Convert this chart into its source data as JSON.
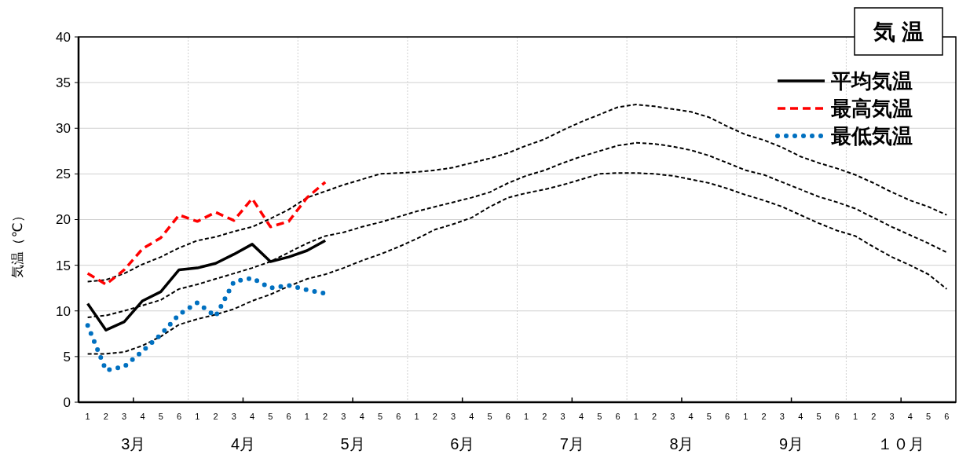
{
  "chart_data": {
    "type": "line",
    "title": "気 温",
    "ylabel": "気温（℃）",
    "categories": [
      "1",
      "2",
      "3",
      "4",
      "5",
      "6",
      "1",
      "2",
      "3",
      "4",
      "5",
      "6",
      "1",
      "2",
      "3",
      "4",
      "5",
      "6",
      "1",
      "2",
      "3",
      "4",
      "5",
      "6",
      "1",
      "2",
      "3",
      "4",
      "5",
      "6",
      "1",
      "2",
      "3",
      "4",
      "5",
      "6",
      "1",
      "2",
      "3",
      "4",
      "5",
      "6",
      "1",
      "2",
      "3",
      "4",
      "5",
      "6"
    ],
    "annotations": [
      "3月",
      "4月",
      "5月",
      "6月",
      "7月",
      "8月",
      "9月",
      "１０月"
    ],
    "ylim": [
      0,
      40
    ],
    "yticks": [
      0,
      5,
      10,
      15,
      20,
      25,
      30,
      35,
      40
    ],
    "grid": true,
    "legend": "top right",
    "series": [
      {
        "color": "#000000",
        "line_style": "dashed",
        "values": [
          13.2,
          13.4,
          14.1,
          15.1,
          15.9,
          16.9,
          17.7,
          18.1,
          18.7,
          19.2,
          20.1,
          21.1,
          22.4,
          23.1,
          23.8,
          24.4,
          25.0,
          25.1,
          25.2,
          25.4,
          25.7,
          26.2,
          26.7,
          27.3,
          28.1,
          28.8,
          29.8,
          30.7,
          31.5,
          32.3,
          32.6,
          32.4,
          32.1,
          31.8,
          31.2,
          30.2,
          29.3,
          28.7,
          27.9,
          26.9,
          26.2,
          25.6,
          24.9,
          24.0,
          23.0,
          22.1,
          21.4,
          20.5
        ]
      },
      {
        "color": "#000000",
        "line_style": "dashed",
        "values": [
          9.3,
          9.5,
          10.0,
          10.6,
          11.2,
          12.4,
          12.9,
          13.5,
          14.1,
          14.7,
          15.4,
          16.4,
          17.4,
          18.2,
          18.6,
          19.2,
          19.7,
          20.3,
          20.9,
          21.4,
          21.9,
          22.4,
          23.0,
          24.0,
          24.8,
          25.4,
          26.2,
          26.9,
          27.5,
          28.1,
          28.4,
          28.3,
          28.0,
          27.6,
          27.0,
          26.2,
          25.4,
          24.9,
          24.1,
          23.3,
          22.5,
          21.9,
          21.2,
          20.2,
          19.2,
          18.3,
          17.4,
          16.4
        ]
      },
      {
        "color": "#000000",
        "line_style": "dashed",
        "values": [
          5.3,
          5.3,
          5.5,
          6.2,
          7.2,
          8.5,
          9.1,
          9.6,
          10.2,
          11.1,
          11.8,
          12.7,
          13.5,
          14.0,
          14.7,
          15.5,
          16.2,
          17.0,
          17.9,
          18.9,
          19.5,
          20.2,
          21.4,
          22.4,
          22.9,
          23.3,
          23.8,
          24.4,
          25.0,
          25.1,
          25.1,
          25.0,
          24.8,
          24.4,
          24.0,
          23.4,
          22.7,
          22.1,
          21.4,
          20.5,
          19.6,
          18.8,
          18.2,
          17.0,
          15.9,
          15.0,
          14.0,
          12.4
        ]
      },
      {
        "name": "平均気温",
        "color": "#000000",
        "line_style": "solid",
        "values": [
          10.8,
          7.9,
          8.8,
          11.1,
          12.1,
          14.5,
          14.7,
          15.2,
          16.2,
          17.3,
          15.4,
          15.9,
          16.6,
          17.7,
          null,
          null,
          null,
          null,
          null,
          null,
          null,
          null,
          null,
          null,
          null,
          null,
          null,
          null,
          null,
          null,
          null,
          null,
          null,
          null,
          null,
          null,
          null,
          null,
          null,
          null,
          null,
          null,
          null,
          null,
          null,
          null,
          null,
          null
        ]
      },
      {
        "name": "最高気温",
        "color": "#ff0000",
        "line_style": "dashed",
        "values": [
          14.1,
          12.9,
          14.5,
          16.8,
          18.0,
          20.5,
          19.8,
          20.8,
          19.9,
          22.3,
          19.2,
          19.8,
          22.4,
          24.1,
          null,
          null,
          null,
          null,
          null,
          null,
          null,
          null,
          null,
          null,
          null,
          null,
          null,
          null,
          null,
          null,
          null,
          null,
          null,
          null,
          null,
          null,
          null,
          null,
          null,
          null,
          null,
          null,
          null,
          null,
          null,
          null,
          null,
          null
        ]
      },
      {
        "name": "最低気温",
        "color": "#0070c0",
        "line_style": "dotted",
        "values": [
          8.4,
          3.5,
          3.9,
          5.6,
          7.4,
          9.6,
          10.9,
          9.4,
          13.2,
          13.6,
          12.5,
          12.8,
          12.3,
          11.9,
          null,
          null,
          null,
          null,
          null,
          null,
          null,
          null,
          null,
          null,
          null,
          null,
          null,
          null,
          null,
          null,
          null,
          null,
          null,
          null,
          null,
          null,
          null,
          null,
          null,
          null,
          null,
          null,
          null,
          null,
          null,
          null,
          null,
          null
        ]
      }
    ]
  }
}
